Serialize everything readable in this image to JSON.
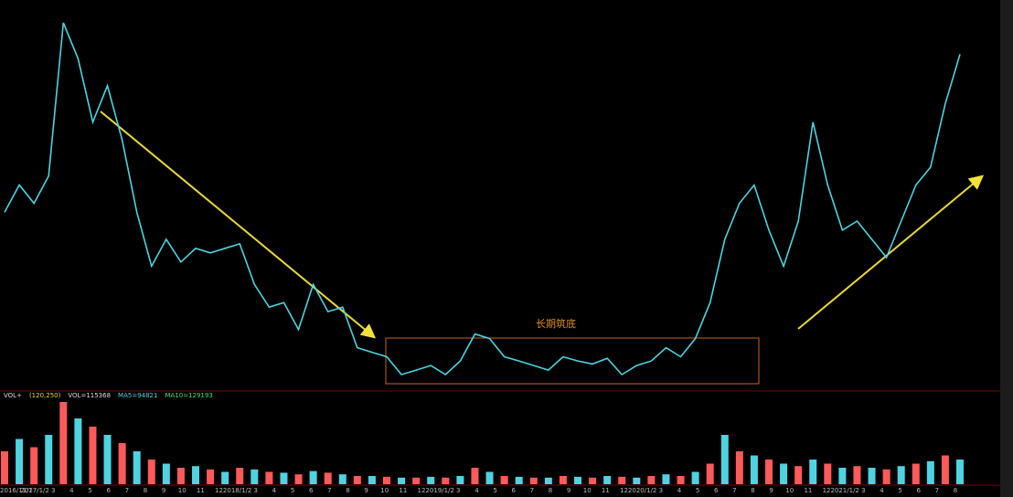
{
  "chart_data": {
    "type": "line",
    "annotation": "长期筑底",
    "legend_texts": [
      "VOL+",
      "(120,250)",
      "VOL=115368",
      "MA5=94821",
      "MA10=129193"
    ],
    "series": [
      {
        "name": "price",
        "color": "#4fd3e0",
        "values": [
          45.2,
          52.4,
          47.6,
          54.8,
          95.2,
          85.7,
          69.0,
          78.6,
          64.3,
          45.2,
          31.0,
          38.1,
          32.1,
          35.7,
          34.5,
          35.7,
          36.9,
          26.2,
          20.2,
          21.4,
          14.3,
          26.2,
          19.0,
          20.2,
          9.5,
          8.3,
          7.1,
          2.4,
          3.6,
          4.8,
          2.4,
          6.0,
          13.1,
          11.9,
          7.1,
          6.0,
          4.8,
          3.6,
          7.1,
          6.0,
          5.2,
          6.7,
          2.4,
          4.8,
          6.0,
          9.5,
          7.1,
          11.9,
          21.4,
          38.1,
          47.6,
          52.4,
          40.5,
          31.0,
          42.9,
          69.0,
          52.4,
          40.5,
          42.9,
          38.1,
          33.3,
          42.9,
          52.4,
          57.1,
          73.8,
          86.9
        ]
      }
    ],
    "volume": {
      "colors": [
        "#ff5a5a",
        "#4fd3e0"
      ],
      "values": [
        40,
        55,
        45,
        60,
        100,
        80,
        70,
        60,
        50,
        40,
        30,
        25,
        20,
        22,
        18,
        15,
        20,
        18,
        15,
        14,
        12,
        16,
        14,
        12,
        10,
        10,
        9,
        8,
        8,
        9,
        8,
        10,
        20,
        15,
        10,
        9,
        8,
        8,
        10,
        9,
        8,
        10,
        9,
        8,
        10,
        12,
        10,
        15,
        25,
        60,
        40,
        35,
        30,
        25,
        22,
        30,
        25,
        20,
        22,
        20,
        18,
        22,
        25,
        28,
        35,
        30
      ],
      "ylim": [
        0,
        100
      ]
    },
    "ylim": [
      0,
      100
    ],
    "x_labels": [
      "2016/11/2",
      "2017/1/2",
      "3",
      "4",
      "5",
      "6",
      "7",
      "8",
      "9",
      "10",
      "11",
      "12",
      "2018/1/2",
      "3",
      "4",
      "5",
      "6",
      "7",
      "8",
      "9",
      "10",
      "11",
      "12",
      "2019/1/2",
      "3",
      "4",
      "5",
      "6",
      "7",
      "8",
      "9",
      "10",
      "11",
      "12",
      "2020/1/2",
      "3",
      "4",
      "5",
      "6",
      "7",
      "8",
      "9",
      "10",
      "11",
      "12",
      "2021/1/2",
      "3",
      "4",
      "5",
      "6",
      "7",
      "8"
    ]
  }
}
